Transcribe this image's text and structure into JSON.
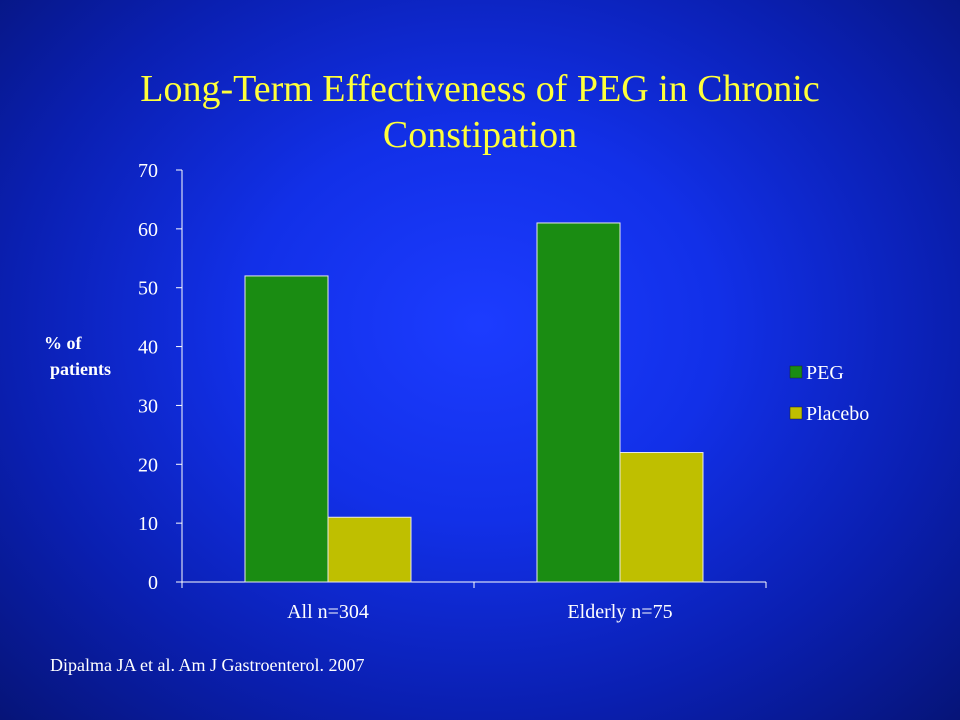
{
  "title": "Long-Term Effectiveness of PEG in Chronic Constipation",
  "citation": "Dipalma JA et al. Am J Gastroenterol. 2007",
  "colors": {
    "background": "#1230e8",
    "title": "#ffff3a",
    "peg": "#1a8c12",
    "placebo": "#bfbf00"
  },
  "chart_data": {
    "type": "bar",
    "title": "",
    "ylabel_line1": "% of",
    "ylabel_line2": "patients",
    "xlabel": "",
    "categories": [
      "All n=304",
      "Elderly n=75"
    ],
    "series": [
      {
        "name": "PEG",
        "values": [
          52,
          61
        ],
        "color": "#1a8c12"
      },
      {
        "name": "Placebo",
        "values": [
          11,
          22
        ],
        "color": "#bfbf00"
      }
    ],
    "ylim": [
      0,
      70
    ],
    "yticks": [
      0,
      10,
      20,
      30,
      40,
      50,
      60,
      70
    ],
    "grid": false,
    "legend": "right"
  }
}
